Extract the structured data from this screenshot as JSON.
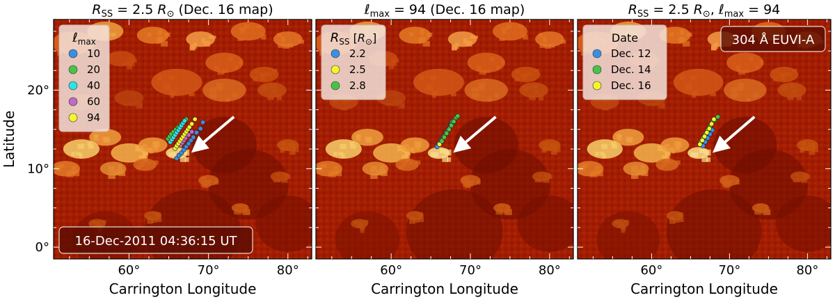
{
  "chart_data": [
    {
      "type": "scatter",
      "title": "R_SS = 2.5 R_⊙ (Dec. 16 map)",
      "title_parts": {
        "var": "R",
        "sub": "SS",
        "eq": " = 2.5 ",
        "unit": "R",
        "unit_sub": "⊙",
        "rest": " (Dec. 16 map)"
      },
      "xlabel": "Carrington Longitude",
      "ylabel": "Latitude",
      "xlim": [
        50.5,
        83
      ],
      "ylim": [
        -1.5,
        29
      ],
      "xticks": [
        "60°",
        "70°",
        "80°"
      ],
      "xtick_values": [
        60,
        70,
        80
      ],
      "yticks": [
        "0°",
        "10°",
        "20°"
      ],
      "ytick_values": [
        0,
        10,
        20
      ],
      "grid": false,
      "background": "304 Å EUVI-A intensity map (dark red to yellow)",
      "legend": {
        "placement": "top-left",
        "title": "ℓmax",
        "title_var": "ℓ",
        "title_sub": "max"
      },
      "stamp": "16-Dec-2011 04:36:15 UT",
      "arrow": {
        "from": [
          73.2,
          16.6
        ],
        "to": [
          68.5,
          12.6
        ],
        "color": "#ffffff"
      },
      "series": [
        {
          "name": "10",
          "color": "#3b8fe3",
          "x": [
            66.0,
            66.3,
            66.6,
            66.9,
            67.2,
            67.5,
            67.8,
            68.1,
            68.5,
            69.0,
            69.3
          ],
          "y": [
            11.3,
            11.7,
            12.0,
            12.4,
            12.8,
            13.2,
            13.6,
            14.0,
            14.6,
            15.1,
            15.9
          ]
        },
        {
          "name": "20",
          "color": "#47c447",
          "x": [
            64.9,
            65.1,
            65.3,
            65.6,
            65.9,
            66.2,
            66.5,
            66.8,
            67.0,
            67.2
          ],
          "y": [
            13.8,
            14.1,
            14.4,
            14.7,
            15.0,
            15.3,
            15.6,
            15.9,
            16.1,
            16.3
          ]
        },
        {
          "name": "40",
          "color": "#2fe3e3",
          "x": [
            65.2,
            65.4,
            65.6,
            65.8,
            66.0,
            66.2,
            66.4,
            66.6,
            66.8,
            67.0
          ],
          "y": [
            13.4,
            13.7,
            14.0,
            14.3,
            14.6,
            14.9,
            15.2,
            15.5,
            15.8,
            16.1
          ]
        },
        {
          "name": "60",
          "color": "#c06ac6",
          "x": [
            66.5,
            66.7,
            66.9,
            67.1,
            67.5,
            67.9
          ],
          "y": [
            13.0,
            13.3,
            13.6,
            13.9,
            14.3,
            14.7
          ]
        },
        {
          "name": "94",
          "color": "#f5f52e",
          "x": [
            65.8,
            66.0,
            66.2,
            66.4,
            66.6,
            66.8,
            67.0,
            67.2,
            67.4,
            67.6,
            67.9,
            68.3
          ],
          "y": [
            12.6,
            12.9,
            13.2,
            13.5,
            13.8,
            14.1,
            14.4,
            14.7,
            15.0,
            15.3,
            15.7,
            16.3
          ]
        }
      ]
    },
    {
      "type": "scatter",
      "title": "ℓ_max = 94 (Dec. 16 map)",
      "title_parts": {
        "var": "ℓ",
        "sub": "max",
        "eq": " = 94",
        "unit": "",
        "unit_sub": "",
        "rest": " (Dec. 16 map)"
      },
      "xlabel": "Carrington Longitude",
      "ylabel": "",
      "xlim": [
        50.5,
        83
      ],
      "ylim": [
        -1.5,
        29
      ],
      "xticks": [
        "60°",
        "70°",
        "80°"
      ],
      "xtick_values": [
        60,
        70,
        80
      ],
      "grid": false,
      "legend": {
        "placement": "top-left",
        "title": "R_SS [R_⊙]",
        "title_var": "R",
        "title_sub": "SS",
        "title_rest": " [",
        "title_unit": "R",
        "title_unit_sub": "⊙",
        "title_end": "]"
      },
      "arrow": {
        "from": [
          73.2,
          16.6
        ],
        "to": [
          68.5,
          12.6
        ],
        "color": "#ffffff"
      },
      "series": [
        {
          "name": "2.2",
          "color": "#3b8fe3",
          "x": [
            65.8,
            66.0,
            66.3,
            66.6,
            66.9,
            67.2,
            67.5,
            67.7
          ],
          "y": [
            12.8,
            13.2,
            13.6,
            14.1,
            14.6,
            15.1,
            15.6,
            16.0
          ]
        },
        {
          "name": "2.5",
          "color": "#f5f52e",
          "x": [
            66.1,
            66.4,
            66.7,
            67.0,
            67.3,
            67.6,
            67.9
          ],
          "y": [
            13.1,
            13.6,
            14.1,
            14.6,
            15.1,
            15.6,
            16.1
          ]
        },
        {
          "name": "2.8",
          "color": "#47c447",
          "x": [
            66.4,
            66.7,
            67.0,
            67.3,
            67.6,
            67.9,
            68.2,
            68.4
          ],
          "y": [
            13.5,
            14.0,
            14.5,
            15.0,
            15.5,
            16.0,
            16.5,
            16.7
          ]
        }
      ]
    },
    {
      "type": "scatter",
      "title": "R_SS = 2.5 R_⊙, ℓ_max = 94",
      "title_parts": {
        "var": "R",
        "sub": "SS",
        "eq": " = 2.5 ",
        "unit": "R",
        "unit_sub": "⊙",
        "rest": ", ",
        "var2": "ℓ",
        "sub2": "max",
        "rest2": " = 94"
      },
      "xlabel": "Carrington Longitude",
      "ylabel": "",
      "xlim": [
        50.5,
        83
      ],
      "ylim": [
        -1.5,
        29
      ],
      "xticks": [
        "60°",
        "70°",
        "80°"
      ],
      "xtick_values": [
        60,
        70,
        80
      ],
      "grid": false,
      "legend": {
        "placement": "top-left",
        "title": "Date"
      },
      "instrument_label": "304 Å EUVI-A",
      "arrow": {
        "from": [
          73.2,
          16.6
        ],
        "to": [
          68.5,
          12.6
        ],
        "color": "#ffffff"
      },
      "series": [
        {
          "name": "Dec. 12",
          "color": "#3b8fe3",
          "x": [
            66.6,
            66.9,
            67.2,
            67.5,
            67.8
          ],
          "y": [
            12.9,
            13.4,
            13.9,
            14.4,
            14.9
          ]
        },
        {
          "name": "Dec. 14",
          "color": "#47c447",
          "x": [
            66.3,
            66.6,
            66.9,
            67.2,
            67.5,
            67.8,
            68.1,
            68.5
          ],
          "y": [
            13.4,
            13.9,
            14.4,
            14.9,
            15.4,
            15.9,
            16.2,
            16.6
          ]
        },
        {
          "name": "Dec. 16",
          "color": "#f5f52e",
          "x": [
            66.2,
            66.5,
            66.8,
            67.1,
            67.4,
            67.7,
            68.0
          ],
          "y": [
            13.1,
            13.6,
            14.1,
            14.6,
            15.1,
            15.7,
            16.3
          ]
        }
      ]
    }
  ]
}
